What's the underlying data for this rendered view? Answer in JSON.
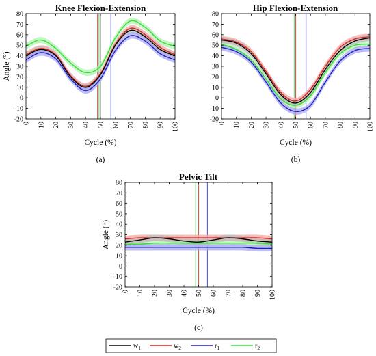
{
  "chart_data": [
    {
      "type": "line",
      "title": "Knee Flexion-Extension",
      "xlabel": "Cycle (%)",
      "ylabel": "Angle (°)",
      "panel_label": "(a)",
      "xlim": [
        0,
        100
      ],
      "ylim": [
        -20,
        80
      ],
      "xticks": [
        0,
        10,
        20,
        30,
        40,
        50,
        60,
        70,
        80,
        90,
        100
      ],
      "yticks": [
        -20,
        -10,
        0,
        10,
        20,
        30,
        40,
        50,
        60,
        70,
        80
      ],
      "x": [
        0,
        10,
        20,
        30,
        40,
        50,
        60,
        70,
        80,
        90,
        100
      ],
      "series": [
        {
          "name": "w1",
          "values": [
            40,
            46,
            40,
            20,
            10,
            22,
            50,
            64,
            58,
            46,
            40
          ],
          "band": 3
        },
        {
          "name": "w2",
          "values": [
            41,
            47,
            41,
            21,
            11,
            23,
            51,
            66,
            60,
            48,
            41
          ],
          "band": 3
        },
        {
          "name": "r1",
          "values": [
            36,
            43,
            37,
            18,
            7,
            18,
            45,
            59,
            54,
            42,
            36
          ],
          "band": 3
        },
        {
          "name": "r2",
          "values": [
            49,
            55,
            47,
            33,
            24,
            30,
            57,
            73,
            67,
            54,
            49
          ],
          "band": 3
        }
      ],
      "vlines": [
        {
          "series": "w1",
          "x": 50
        },
        {
          "series": "w2",
          "x": 48
        },
        {
          "series": "r1",
          "x": 57
        },
        {
          "series": "r2",
          "x": 49
        }
      ]
    },
    {
      "type": "line",
      "title": "Hip Flexion-Extension",
      "xlabel": "Cycle (%)",
      "ylabel": "",
      "panel_label": "(b)",
      "xlim": [
        0,
        100
      ],
      "ylim": [
        -20,
        80
      ],
      "xticks": [
        0,
        10,
        20,
        30,
        40,
        50,
        60,
        70,
        80,
        90,
        100
      ],
      "yticks": [
        -20,
        -10,
        0,
        10,
        20,
        30,
        40,
        50,
        60,
        70,
        80
      ],
      "x": [
        0,
        10,
        20,
        30,
        40,
        50,
        60,
        70,
        80,
        90,
        100
      ],
      "series": [
        {
          "name": "w1",
          "values": [
            55,
            52,
            42,
            23,
            3,
            -5,
            5,
            27,
            45,
            54,
            57
          ],
          "band": 3
        },
        {
          "name": "w2",
          "values": [
            56,
            53,
            44,
            25,
            5,
            -3,
            8,
            30,
            48,
            56,
            58
          ],
          "band": 3
        },
        {
          "name": "r1",
          "values": [
            48,
            44,
            34,
            15,
            -5,
            -13,
            -7,
            15,
            35,
            45,
            47
          ],
          "band": 3
        },
        {
          "name": "r2",
          "values": [
            51,
            46,
            36,
            18,
            -1,
            -7,
            2,
            24,
            42,
            50,
            51
          ],
          "band": 3
        }
      ],
      "vlines": [
        {
          "series": "w1",
          "x": 50
        },
        {
          "series": "w2",
          "x": 50
        },
        {
          "series": "r1",
          "x": 57
        },
        {
          "series": "r2",
          "x": 49
        }
      ]
    },
    {
      "type": "line",
      "title": "Pelvic Tilt",
      "xlabel": "Cycle (%)",
      "ylabel": "Angle (°)",
      "panel_label": "(c)",
      "xlim": [
        0,
        100
      ],
      "ylim": [
        -20,
        80
      ],
      "xticks": [
        0,
        10,
        20,
        30,
        40,
        50,
        60,
        70,
        80,
        90,
        100
      ],
      "yticks": [
        -20,
        -10,
        0,
        10,
        20,
        30,
        40,
        50,
        60,
        70,
        80
      ],
      "x": [
        0,
        10,
        20,
        30,
        40,
        50,
        60,
        70,
        80,
        90,
        100
      ],
      "series": [
        {
          "name": "w1",
          "values": [
            23,
            25,
            27,
            26,
            24,
            23,
            25,
            27,
            26,
            24,
            23
          ],
          "band": 3
        },
        {
          "name": "w2",
          "values": [
            26,
            27,
            27,
            27,
            27,
            27,
            27,
            27,
            27,
            27,
            26
          ],
          "band": 3
        },
        {
          "name": "r1",
          "values": [
            18,
            18,
            18,
            18,
            18,
            18,
            18,
            18,
            18,
            17,
            17
          ],
          "band": 3
        },
        {
          "name": "r2",
          "values": [
            21,
            21,
            22,
            22,
            22,
            22,
            22,
            22,
            22,
            22,
            21
          ],
          "band": 3
        }
      ],
      "vlines": [
        {
          "series": "w1",
          "x": 50
        },
        {
          "series": "w2",
          "x": 50
        },
        {
          "series": "r1",
          "x": 56
        },
        {
          "series": "r2",
          "x": 48
        }
      ]
    }
  ],
  "legend": {
    "position": "bottom-center",
    "entries": [
      {
        "series": "w1",
        "base": "w",
        "sub": "1"
      },
      {
        "series": "w2",
        "base": "w",
        "sub": "2"
      },
      {
        "series": "r1",
        "base": "r",
        "sub": "1"
      },
      {
        "series": "r2",
        "base": "r",
        "sub": "2"
      }
    ]
  },
  "colors": {
    "w1": "#000000",
    "w2": "#d9261c",
    "r1": "#1f1fbf",
    "r2": "#33dd33",
    "w1_band": "#bdbdbd",
    "w2_band": "#f4a7a7",
    "r1_band": "#a9a9f2",
    "r2_band": "#b5f2b5",
    "w1_vline": "#8c8c8c",
    "w2_vline": "#e05a4a",
    "r1_vline": "#5a5ad2",
    "r2_vline": "#7ad87a"
  }
}
